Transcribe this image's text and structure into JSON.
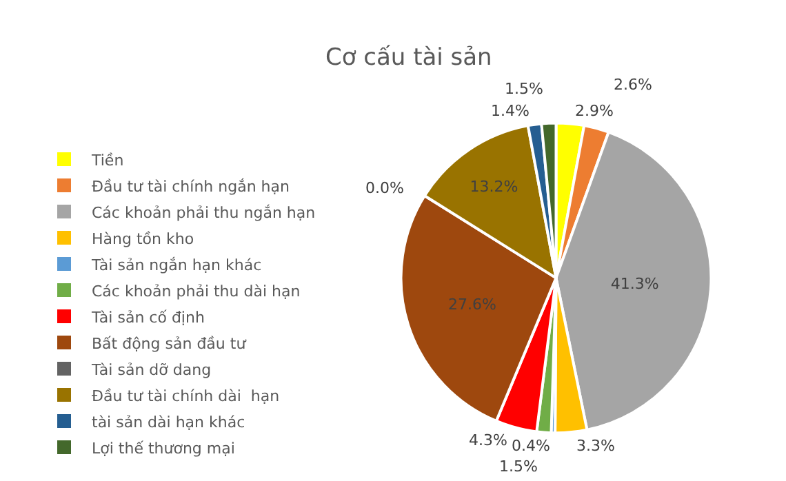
{
  "chart_data": {
    "type": "pie",
    "title": "Cơ cấu tài sản",
    "categories": [
      "Tiền",
      "Đầu tư tài chính ngắn hạn",
      "Các khoản phải thu ngắn hạn",
      "Hàng tồn kho",
      "Tài sản ngắn hạn khác",
      "Các khoản phải thu dài hạn",
      "Tài sản cố định",
      "Bất động sản đầu tư",
      "Tài sản dỡ dang",
      "Đầu tư tài chính dài  hạn",
      "tài sản dài hạn khác",
      "Lợi thế thương mại"
    ],
    "values": [
      2.9,
      2.6,
      41.3,
      3.3,
      0.4,
      1.5,
      4.3,
      27.6,
      0.0,
      13.2,
      1.4,
      1.5
    ],
    "value_labels": [
      "2.9%",
      "2.6%",
      "41.3%",
      "3.3%",
      "0.4%",
      "1.5%",
      "4.3%",
      "27.6%",
      "0.0%",
      "13.2%",
      "1.4%",
      "1.5%"
    ],
    "colors": [
      "#ffff00",
      "#ed7d31",
      "#a5a5a5",
      "#ffc000",
      "#5b9bd5",
      "#70ad47",
      "#ff0000",
      "#9e480e",
      "#636363",
      "#997300",
      "#255e91",
      "#43682b"
    ],
    "legend": "left"
  }
}
